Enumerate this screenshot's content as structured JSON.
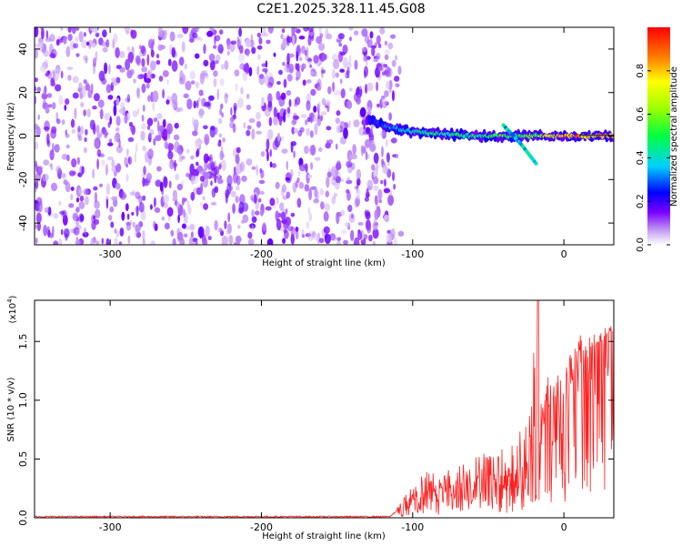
{
  "title": "C2E1.2025.328.11.45.G08",
  "chart_data": [
    {
      "type": "heatmap",
      "id": "spectrogram",
      "xlabel": "Height of straight line (km)",
      "ylabel": "Frequency (Hz)",
      "xlim": [
        -350,
        33
      ],
      "ylim": [
        -50,
        50
      ],
      "xticks": [
        -300,
        -200,
        -100,
        0
      ],
      "xtick_labels": [
        "-300",
        "-200",
        "-100",
        "0"
      ],
      "yticks": [
        -40,
        -20,
        0,
        20,
        40
      ],
      "ytick_labels": [
        "-40",
        "-20",
        "0",
        "20",
        "40"
      ],
      "colorbar": {
        "label": "Normalized spectral amplitude",
        "range": [
          0,
          1
        ],
        "ticks": [
          0.0,
          0.2,
          0.4,
          0.6,
          0.8
        ],
        "tick_labels": [
          "0.0",
          "0.2",
          "0.4",
          "0.6",
          "0.8"
        ]
      },
      "noise_region": {
        "x_from": -350,
        "x_to": -115,
        "amplitude": 0.1
      },
      "signal_trace": {
        "x": [
          -130,
          -115,
          -100,
          -80,
          -60,
          -40,
          -25,
          -15,
          0,
          20,
          33
        ],
        "frequency": [
          8,
          4,
          2,
          1,
          0,
          0,
          0,
          0,
          0,
          0,
          0
        ],
        "amplitude": [
          0.2,
          0.35,
          0.45,
          0.5,
          0.5,
          0.55,
          0.6,
          0.65,
          0.9,
          0.9,
          0.9
        ]
      },
      "secondary_branch": {
        "x": [
          -40,
          -28,
          -18
        ],
        "frequency": [
          5,
          -4,
          -13
        ],
        "amplitude": 0.4
      }
    },
    {
      "type": "line",
      "id": "snr",
      "xlabel": "Height of straight line (km)",
      "ylabel": "SNR (10 * v/v)",
      "y_multiplier": "(x10",
      "y_multiplier_exp": "4",
      "y_multiplier_close": ")",
      "xlim": [
        -350,
        33
      ],
      "ylim": [
        0,
        1.85
      ],
      "xticks": [
        -300,
        -200,
        -100,
        0
      ],
      "xtick_labels": [
        "-300",
        "-200",
        "-100",
        "0"
      ],
      "yticks": [
        0.0,
        0.5,
        1.0,
        1.5
      ],
      "ytick_labels": [
        "0.0",
        "0.5",
        "1.0",
        "1.5"
      ],
      "series": [
        {
          "name": "SNR",
          "color": "#ff2020",
          "envelope": {
            "x": [
              -350,
              -115,
              -105,
              -90,
              -70,
              -50,
              -35,
              -25,
              -18,
              -15,
              -10,
              0,
              10,
              20,
              33
            ],
            "mean": [
              0.01,
              0.01,
              0.12,
              0.22,
              0.28,
              0.32,
              0.36,
              0.45,
              0.6,
              0.8,
              0.95,
              1.05,
              1.25,
              1.45,
              1.6
            ],
            "peak": [
              0.02,
              0.02,
              0.2,
              0.42,
              0.45,
              0.58,
              0.65,
              0.85,
              1.9,
              1.1,
              1.25,
              1.3,
              1.55,
              1.6,
              1.64
            ]
          }
        }
      ]
    }
  ]
}
